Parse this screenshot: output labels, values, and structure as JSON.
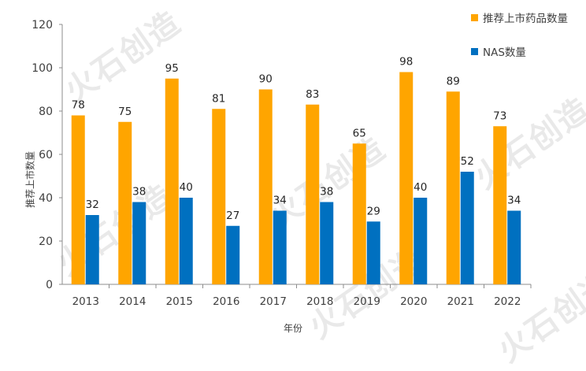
{
  "watermark_text": "火石创造",
  "chart_data": {
    "type": "bar",
    "categories": [
      "2013",
      "2014",
      "2015",
      "2016",
      "2017",
      "2018",
      "2019",
      "2020",
      "2021",
      "2022"
    ],
    "series": [
      {
        "name": "推荐上市药品数量",
        "color": "#FFA500",
        "values": [
          78,
          75,
          95,
          81,
          90,
          83,
          65,
          98,
          89,
          73
        ]
      },
      {
        "name": "NAS数量",
        "color": "#0070C0",
        "values": [
          32,
          38,
          40,
          27,
          34,
          38,
          29,
          40,
          52,
          34
        ]
      }
    ],
    "xlabel": "年份",
    "ylabel": "推荐上市数量",
    "ylim": [
      0,
      120
    ],
    "yticks": [
      0,
      20,
      40,
      60,
      80,
      100,
      120
    ],
    "grid": false,
    "legend_position": "top-right"
  }
}
